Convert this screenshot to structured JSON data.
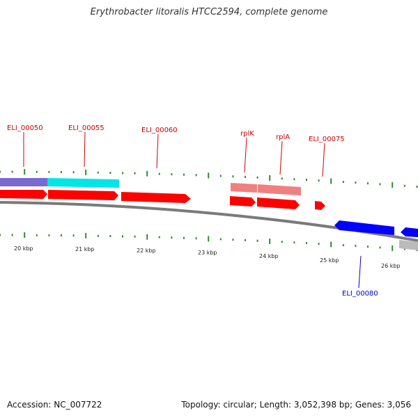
{
  "title": "Erythrobacter litoralis HTCC2594, complete genome",
  "footer": {
    "accession": "Accession: NC_007722",
    "summary": "Topology: circular; Length: 3,052,398 bp; Genes: 3,056"
  },
  "colors": {
    "cds_forward": "#ff0000",
    "cds_reverse": "#0000ff",
    "label_forward": "#cc0000",
    "label_reverse": "#0000cc",
    "backbone": "#888888",
    "ticks": "#2e8b2e",
    "gene_purple": "#6a5acd",
    "gene_cyan": "#00e5e5",
    "gene_pink": "#f08080",
    "gene_gray": "#bbbbbb"
  },
  "scale_labels": [
    "20 kbp",
    "21 kbp",
    "22 kbp",
    "23 kbp",
    "24 kbp",
    "25 kbp",
    "26 kbp"
  ],
  "gene_labels": [
    {
      "text": "ELI_00050",
      "strand": "forward"
    },
    {
      "text": "ELI_00055",
      "strand": "forward"
    },
    {
      "text": "ELI_00060",
      "strand": "forward"
    },
    {
      "text": "rplK",
      "strand": "forward"
    },
    {
      "text": "rplA",
      "strand": "forward"
    },
    {
      "text": "ELI_00075",
      "strand": "forward"
    },
    {
      "text": "ELI_00080",
      "strand": "reverse"
    }
  ]
}
